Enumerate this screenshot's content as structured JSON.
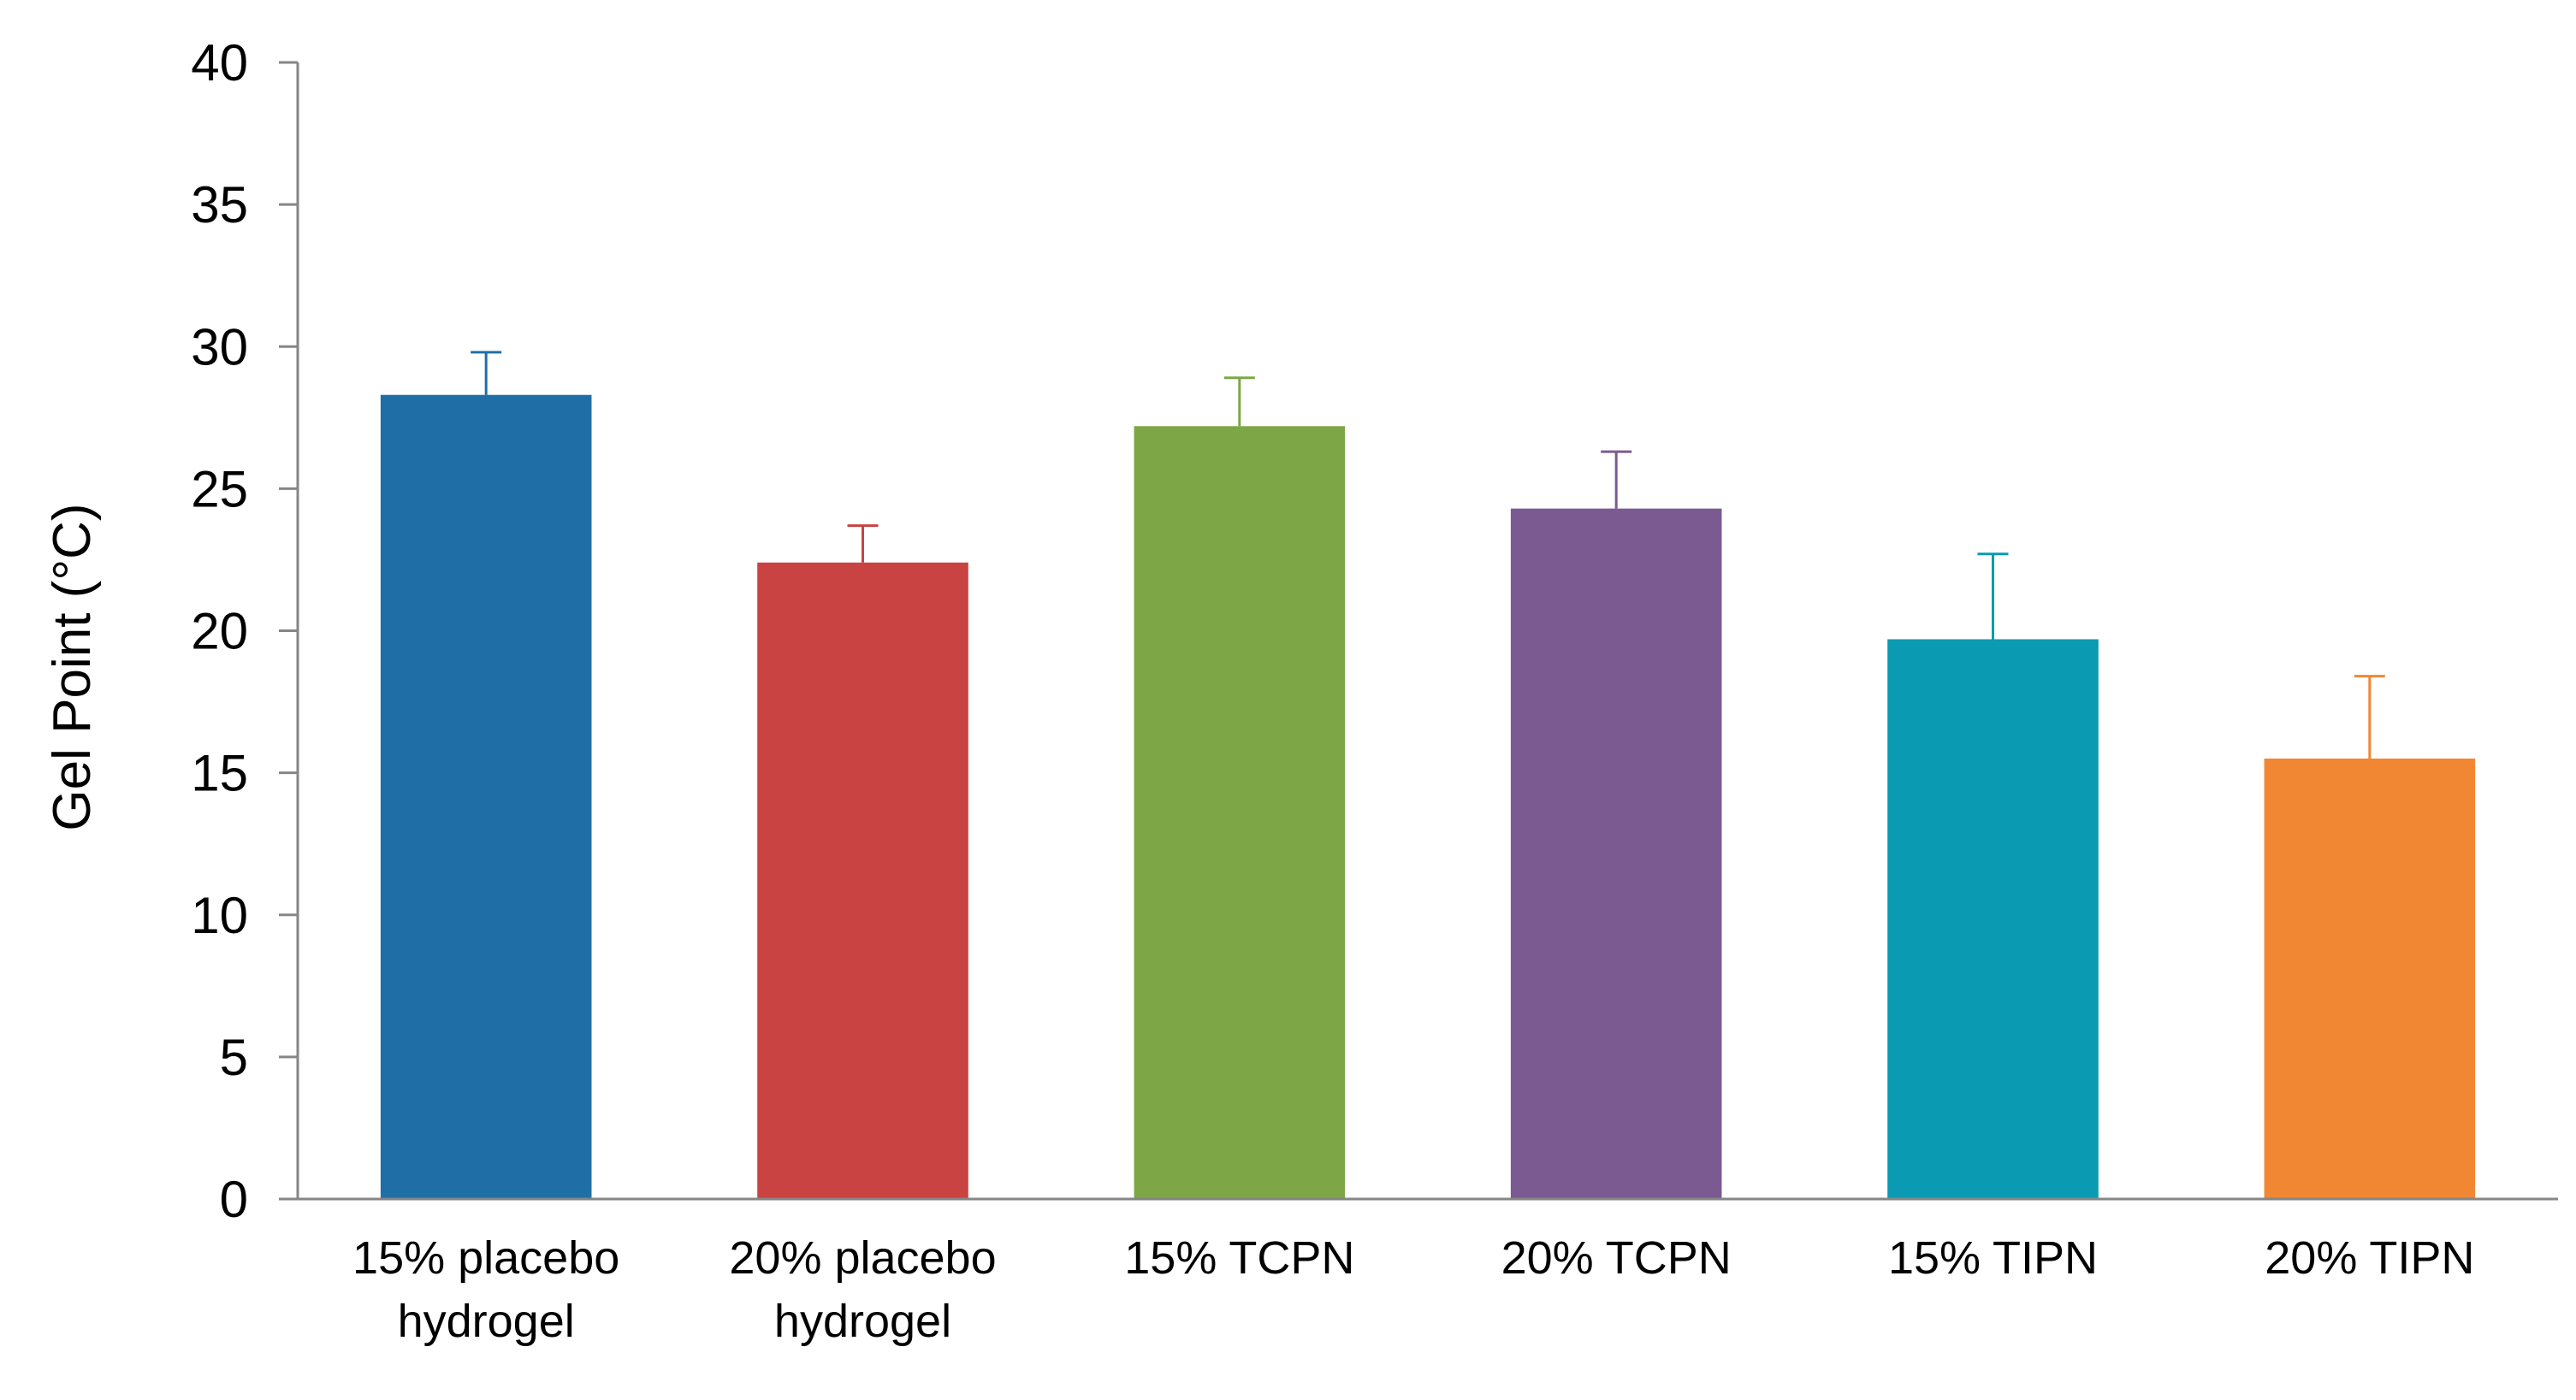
{
  "chart_data": {
    "type": "bar",
    "title": "",
    "xlabel": "",
    "ylabel": "Gel Point (°C)",
    "ylim": [
      0,
      40
    ],
    "yticks": [
      0,
      5,
      10,
      15,
      20,
      25,
      30,
      35,
      40
    ],
    "categories": [
      [
        "15% placebo",
        "hydrogel"
      ],
      [
        "20% placebo",
        "hydrogel"
      ],
      [
        "15% TCPN"
      ],
      [
        "20% TCPN"
      ],
      [
        "15% TIPN"
      ],
      [
        "20% TIPN"
      ]
    ],
    "values": [
      28.3,
      22.4,
      27.2,
      24.3,
      19.7,
      15.5
    ],
    "errors": [
      1.5,
      1.3,
      1.7,
      2.0,
      3.0,
      2.9
    ],
    "colors": [
      "#1F6FA6",
      "#C84341",
      "#7DA746",
      "#7B5A91",
      "#0A9AB1",
      "#F18733"
    ],
    "grid": false,
    "legend": "none"
  }
}
